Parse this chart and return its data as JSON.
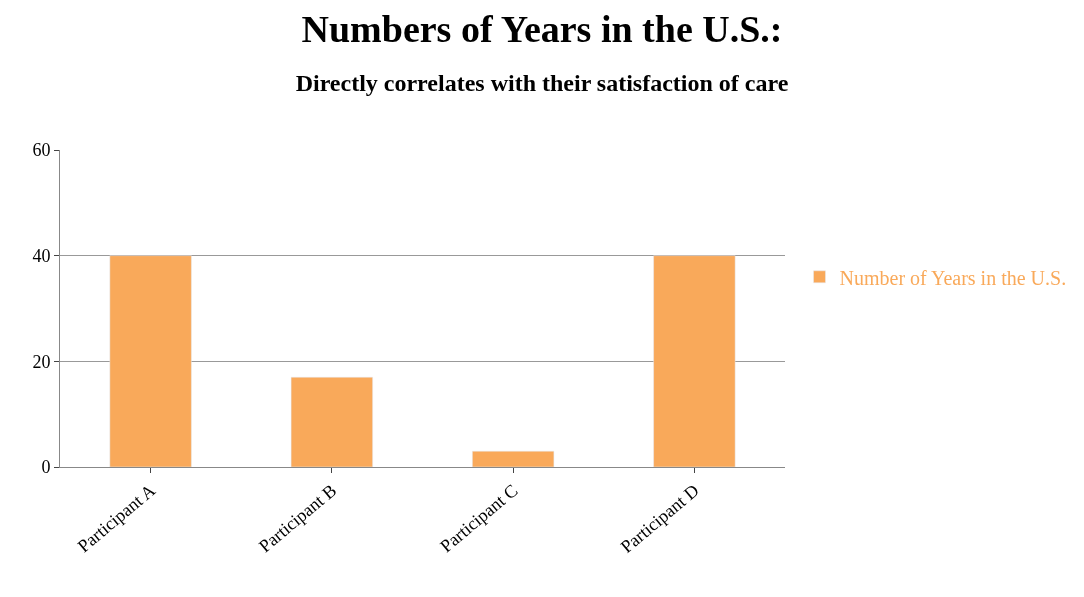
{
  "chart_data": {
    "type": "bar",
    "title": "Numbers of Years in the U.S.:",
    "subtitle": "Directly correlates with their satisfaction of care",
    "categories": [
      "Participant A",
      "Participant B",
      "Participant C",
      "Participant D"
    ],
    "series": [
      {
        "name": "Number of Years in the U.S.",
        "color": "#f9a95a",
        "values": [
          40,
          17,
          3,
          40
        ]
      }
    ],
    "ylim": [
      0,
      60
    ],
    "yticks": [
      0,
      20,
      40,
      60
    ],
    "grid": "y",
    "legend": "right"
  }
}
